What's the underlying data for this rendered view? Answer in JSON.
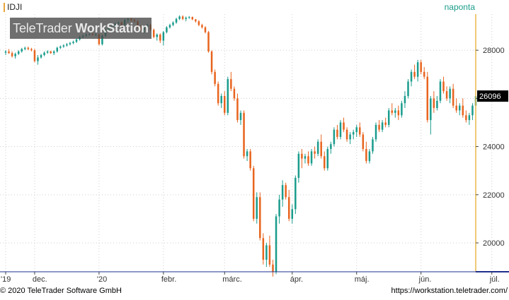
{
  "header": {
    "symbol": "IDJI",
    "period": "naponta",
    "watermark_light": "TeleTrader ",
    "watermark_bold": "WorkStation"
  },
  "footer": {
    "copyright": "© 2020 TeleTrader Software GmbH",
    "url": "https://workstation.teletrader.com/"
  },
  "colors": {
    "up": "#1a9c8c",
    "down": "#e8641e",
    "grid": "#cfcfcf",
    "axis_line": "#e8b84a",
    "last_price_box": "#000000",
    "bottom_band": "#1e2f8c"
  },
  "chart_data": {
    "type": "candlestick",
    "series_name": "IDJI",
    "ylim": [
      18800,
      29500
    ],
    "y_ticks": [
      20000,
      22000,
      24000,
      26000,
      28000
    ],
    "y_tick_labels": [
      "20000",
      "22000",
      "24000",
      "26000",
      "28000"
    ],
    "last_value": 26096,
    "last_value_label": "26096",
    "x_labels": [
      {
        "label": "'19",
        "index": 0
      },
      {
        "label": "dec.",
        "index": 9
      },
      {
        "label": "'20",
        "index": 29
      },
      {
        "label": "febr.",
        "index": 49
      },
      {
        "label": "márc.",
        "index": 68
      },
      {
        "label": "ápr.",
        "index": 89
      },
      {
        "label": "máj.",
        "index": 109
      },
      {
        "label": "jún.",
        "index": 129
      },
      {
        "label": "júl.",
        "index": 151
      }
    ],
    "candles": [
      [
        27900,
        28000,
        27800,
        27950
      ],
      [
        27950,
        28050,
        27850,
        27880
      ],
      [
        27880,
        27950,
        27700,
        27750
      ],
      [
        27750,
        27900,
        27650,
        27850
      ],
      [
        27850,
        28000,
        27800,
        27950
      ],
      [
        27950,
        28100,
        27900,
        28050
      ],
      [
        28050,
        28150,
        28000,
        28100
      ],
      [
        28100,
        28150,
        28000,
        28050
      ],
      [
        28050,
        28100,
        27950,
        28000
      ],
      [
        28000,
        28050,
        27500,
        27550
      ],
      [
        27550,
        27800,
        27400,
        27700
      ],
      [
        27700,
        27850,
        27650,
        27800
      ],
      [
        27800,
        27950,
        27750,
        27900
      ],
      [
        27900,
        28000,
        27850,
        27950
      ],
      [
        27950,
        27980,
        27850,
        27880
      ],
      [
        27880,
        28000,
        27800,
        27950
      ],
      [
        27950,
        28150,
        27900,
        28100
      ],
      [
        28100,
        28200,
        28050,
        28150
      ],
      [
        28150,
        28250,
        28100,
        28200
      ],
      [
        28200,
        28300,
        28150,
        28250
      ],
      [
        28250,
        28350,
        28200,
        28300
      ],
      [
        28300,
        28400,
        28250,
        28350
      ],
      [
        28350,
        28500,
        28300,
        28450
      ],
      [
        28450,
        28600,
        28400,
        28550
      ],
      [
        28550,
        28650,
        28500,
        28600
      ],
      [
        28600,
        28700,
        28550,
        28650
      ],
      [
        28650,
        28700,
        28600,
        28680
      ],
      [
        28680,
        28720,
        28600,
        28640
      ],
      [
        28640,
        28700,
        28580,
        28660
      ],
      [
        28660,
        28700,
        28200,
        28250
      ],
      [
        28250,
        28650,
        28200,
        28600
      ],
      [
        28600,
        28900,
        28550,
        28850
      ],
      [
        28850,
        29000,
        28800,
        28950
      ],
      [
        28950,
        29050,
        28900,
        29000
      ],
      [
        29000,
        29150,
        28950,
        29100
      ],
      [
        29100,
        29200,
        29050,
        29150
      ],
      [
        29150,
        29200,
        29000,
        29050
      ],
      [
        29050,
        29300,
        29000,
        29250
      ],
      [
        29250,
        29350,
        29150,
        29300
      ],
      [
        29300,
        29350,
        29200,
        29250
      ],
      [
        29250,
        29300,
        29150,
        29200
      ],
      [
        29200,
        29250,
        28900,
        28950
      ],
      [
        28950,
        29050,
        28800,
        28850
      ],
      [
        28850,
        29000,
        28700,
        28950
      ],
      [
        28950,
        29100,
        28900,
        29050
      ],
      [
        29050,
        29100,
        28800,
        28850
      ],
      [
        28850,
        28900,
        28500,
        28550
      ],
      [
        28550,
        28700,
        28400,
        28650
      ],
      [
        28650,
        28700,
        28300,
        28400
      ],
      [
        28400,
        28800,
        28200,
        28750
      ],
      [
        28750,
        29000,
        28700,
        28950
      ],
      [
        28950,
        29100,
        28900,
        29050
      ],
      [
        29050,
        29200,
        29000,
        29150
      ],
      [
        29150,
        29350,
        29100,
        29300
      ],
      [
        29300,
        29450,
        29250,
        29400
      ],
      [
        29400,
        29450,
        29250,
        29300
      ],
      [
        29300,
        29400,
        29200,
        29350
      ],
      [
        29350,
        29420,
        29300,
        29380
      ],
      [
        29380,
        29400,
        29250,
        29280
      ],
      [
        29280,
        29300,
        29150,
        29200
      ],
      [
        29200,
        29250,
        29000,
        29050
      ],
      [
        29050,
        29100,
        28900,
        28950
      ],
      [
        28950,
        29000,
        28700,
        28750
      ],
      [
        28750,
        28800,
        27900,
        27950
      ],
      [
        27950,
        28000,
        27000,
        27100
      ],
      [
        27100,
        27200,
        26500,
        26600
      ],
      [
        26600,
        26700,
        25700,
        25800
      ],
      [
        25800,
        26200,
        25600,
        26100
      ],
      [
        26100,
        26300,
        25300,
        25400
      ],
      [
        25400,
        26900,
        25300,
        26800
      ],
      [
        26800,
        27100,
        26300,
        26400
      ],
      [
        26400,
        26500,
        25900,
        26000
      ],
      [
        26000,
        26200,
        25000,
        25100
      ],
      [
        25100,
        25500,
        24900,
        25400
      ],
      [
        25400,
        25500,
        23500,
        23600
      ],
      [
        23600,
        23900,
        23400,
        23800
      ],
      [
        23800,
        23900,
        23000,
        23100
      ],
      [
        23100,
        23200,
        20900,
        21000
      ],
      [
        21000,
        22100,
        20800,
        21900
      ],
      [
        21900,
        22100,
        20100,
        20200
      ],
      [
        20200,
        20400,
        19100,
        19300
      ],
      [
        19300,
        20000,
        19000,
        19900
      ],
      [
        19900,
        20300,
        19000,
        19100
      ],
      [
        19100,
        19300,
        18600,
        18800
      ],
      [
        18800,
        21200,
        18700,
        21100
      ],
      [
        21100,
        22000,
        20800,
        21800
      ],
      [
        21800,
        22600,
        21500,
        22400
      ],
      [
        22400,
        22500,
        21800,
        21900
      ],
      [
        21900,
        22200,
        20900,
        21000
      ],
      [
        21000,
        21600,
        20800,
        21400
      ],
      [
        21400,
        22800,
        21200,
        22700
      ],
      [
        22700,
        23800,
        22500,
        23700
      ],
      [
        23700,
        23900,
        23100,
        23500
      ],
      [
        23500,
        23700,
        23300,
        23600
      ],
      [
        23600,
        23800,
        23200,
        23300
      ],
      [
        23300,
        23900,
        23200,
        23800
      ],
      [
        23800,
        24000,
        23500,
        23700
      ],
      [
        23700,
        24300,
        23600,
        24200
      ],
      [
        24200,
        24500,
        23500,
        23600
      ],
      [
        23600,
        23800,
        23000,
        23100
      ],
      [
        23100,
        24000,
        23000,
        23900
      ],
      [
        23900,
        24200,
        23700,
        24100
      ],
      [
        24100,
        24800,
        24000,
        24700
      ],
      [
        24700,
        24900,
        24300,
        24400
      ],
      [
        24400,
        25100,
        24300,
        25000
      ],
      [
        25000,
        25200,
        24600,
        24700
      ],
      [
        24700,
        24800,
        24200,
        24300
      ],
      [
        24300,
        24600,
        24100,
        24500
      ],
      [
        24500,
        24700,
        24300,
        24600
      ],
      [
        24600,
        24900,
        24400,
        24800
      ],
      [
        24800,
        25000,
        24400,
        24500
      ],
      [
        24500,
        24600,
        23800,
        23900
      ],
      [
        23900,
        24200,
        23300,
        23400
      ],
      [
        23400,
        23900,
        23300,
        23800
      ],
      [
        23800,
        24400,
        23700,
        24300
      ],
      [
        24300,
        25000,
        24200,
        24900
      ],
      [
        24900,
        25100,
        24600,
        24700
      ],
      [
        24700,
        25100,
        24600,
        25000
      ],
      [
        25000,
        25200,
        24800,
        24900
      ],
      [
        24900,
        25600,
        24800,
        25500
      ],
      [
        25500,
        25800,
        25300,
        25400
      ],
      [
        25400,
        25600,
        25200,
        25500
      ],
      [
        25500,
        25700,
        25100,
        25300
      ],
      [
        25300,
        25900,
        25200,
        25800
      ],
      [
        25800,
        26300,
        25600,
        26100
      ],
      [
        26100,
        26800,
        26000,
        26700
      ],
      [
        26700,
        27200,
        26500,
        27100
      ],
      [
        27100,
        27400,
        26800,
        26900
      ],
      [
        26900,
        27600,
        26700,
        27500
      ],
      [
        27500,
        27600,
        27000,
        27100
      ],
      [
        27100,
        27300,
        26800,
        26900
      ],
      [
        26900,
        27100,
        25000,
        25100
      ],
      [
        25100,
        26100,
        24500,
        26000
      ],
      [
        26000,
        26300,
        25400,
        25600
      ],
      [
        25600,
        26100,
        25500,
        25900
      ],
      [
        25900,
        26800,
        25800,
        26700
      ],
      [
        26700,
        26900,
        26200,
        26300
      ],
      [
        26300,
        26500,
        25900,
        26000
      ],
      [
        26000,
        26500,
        25800,
        26400
      ],
      [
        26400,
        26600,
        25600,
        25700
      ],
      [
        25700,
        26000,
        25400,
        25500
      ],
      [
        25500,
        25800,
        25300,
        25700
      ],
      [
        25700,
        26000,
        25200,
        25300
      ],
      [
        25300,
        25500,
        25000,
        25100
      ],
      [
        25100,
        25400,
        24900,
        25300
      ],
      [
        25300,
        25800,
        25100,
        25700
      ],
      [
        25700,
        26150,
        25600,
        26096
      ]
    ]
  }
}
